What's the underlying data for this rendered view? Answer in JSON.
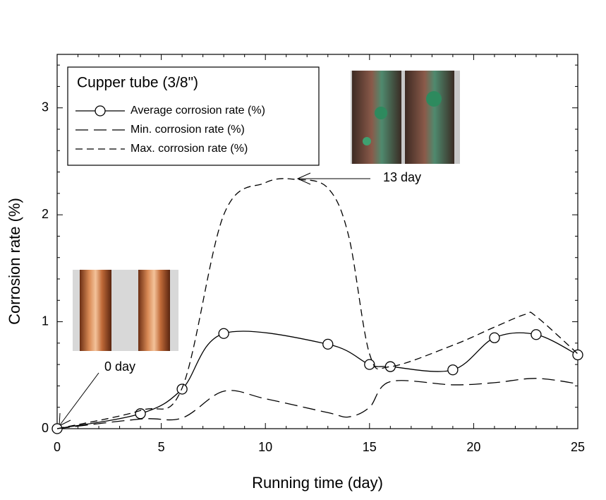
{
  "chart_data": {
    "type": "line",
    "x_label": "Running time  (day)",
    "y_label": "Corrosion rate  (%)",
    "legend_title": "Cupper tube (3/8\")",
    "legend_position": "upper left",
    "xlim": [
      0,
      25
    ],
    "xticks": [
      0,
      5,
      10,
      15,
      20,
      25
    ],
    "ylim": [
      0,
      3.5
    ],
    "yticks": [
      0,
      1,
      2,
      3
    ],
    "series": [
      {
        "name": "Average corrosion rate  (%)",
        "color": "#000000",
        "dash": "none",
        "marker": "circle",
        "x": [
          0,
          4,
          6,
          8,
          13,
          15,
          16,
          19,
          21,
          23,
          25
        ],
        "values": [
          0,
          0.14,
          0.37,
          0.89,
          0.79,
          0.6,
          0.58,
          0.55,
          0.85,
          0.88,
          0.69
        ]
      },
      {
        "name": "Min. corrosion rate  (%)",
        "color": "#000000",
        "dash": "18,8",
        "marker": "none",
        "x": [
          0,
          4,
          6,
          8,
          10,
          13,
          14,
          15,
          16,
          19,
          21,
          23,
          25
        ],
        "values": [
          0,
          0.09,
          0.1,
          0.35,
          0.28,
          0.15,
          0.11,
          0.2,
          0.44,
          0.41,
          0.43,
          0.47,
          0.42
        ]
      },
      {
        "name": "Max. corrosion rate  (%)",
        "color": "#000000",
        "dash": "10,6",
        "marker": "none",
        "x": [
          0,
          4,
          6,
          8,
          10,
          11.5,
          13,
          14,
          15,
          16,
          19,
          21,
          22.5,
          23,
          25
        ],
        "values": [
          0,
          0.17,
          0.38,
          2.0,
          2.3,
          2.33,
          2.25,
          1.8,
          0.7,
          0.58,
          0.78,
          0.95,
          1.07,
          1.05,
          0.7
        ]
      }
    ],
    "annotations": [
      "13 day",
      "0 day"
    ]
  }
}
